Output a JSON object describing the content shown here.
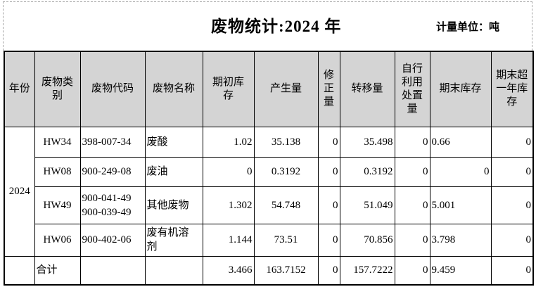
{
  "page": {
    "title": "废物统计:2024 年",
    "unit_label": "计量单位：吨"
  },
  "table": {
    "year": "2024",
    "headers": [
      "年份",
      "废物类\n别",
      "废物代码",
      "废物名称",
      "期初库\n存",
      "产生量",
      "修\n正\n量",
      "转移量",
      "自行\n利用\n处置\n量",
      "期末库存",
      "期末超\n一年库\n存"
    ],
    "rows": [
      [
        "HW34",
        "398-007-34",
        "废酸",
        "1.02",
        "35.138",
        "0",
        "35.498",
        "0",
        "0.66",
        "0"
      ],
      [
        "HW08",
        "900-249-08",
        "废油",
        "0",
        "0.3192",
        "0",
        "0.3192",
        "0",
        "0",
        "0"
      ],
      [
        "HW49",
        "900-041-49\n900-039-49",
        "其他废物",
        "1.302",
        "54.748",
        "0",
        "51.049",
        "0",
        "5.001",
        "0"
      ],
      [
        "HW06",
        "900-402-06",
        "废有机溶剂",
        "1.144",
        "73.51",
        "0",
        "70.856",
        "0",
        "3.798",
        "0"
      ]
    ],
    "total_row": [
      "合计",
      "",
      "",
      "3.466",
      "163.7152",
      "0",
      "157.7222",
      "0",
      "9.459",
      "0"
    ]
  }
}
